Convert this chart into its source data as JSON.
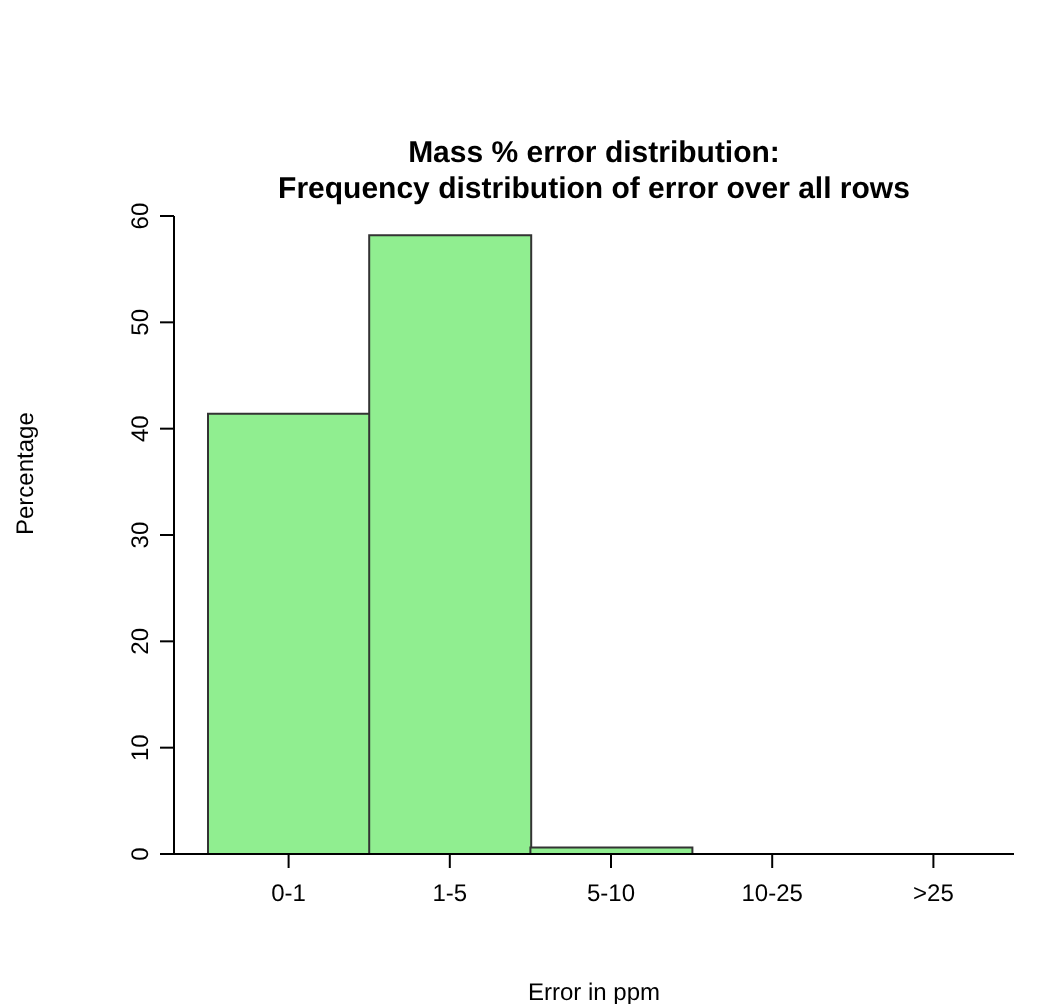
{
  "chart_data": {
    "type": "bar",
    "title": "Mass % error distribution:\nFrequency distribution of error over all rows",
    "xlabel": "Error in ppm",
    "ylabel": "Percentage",
    "categories": [
      "0-1",
      "1-5",
      "5-10",
      "10-25",
      ">25"
    ],
    "values": [
      41.4,
      58.2,
      0.6,
      0,
      0
    ],
    "color": "#90ee90",
    "ylim": [
      0,
      60
    ],
    "yticks": [
      0,
      10,
      20,
      30,
      40,
      50,
      60
    ]
  }
}
